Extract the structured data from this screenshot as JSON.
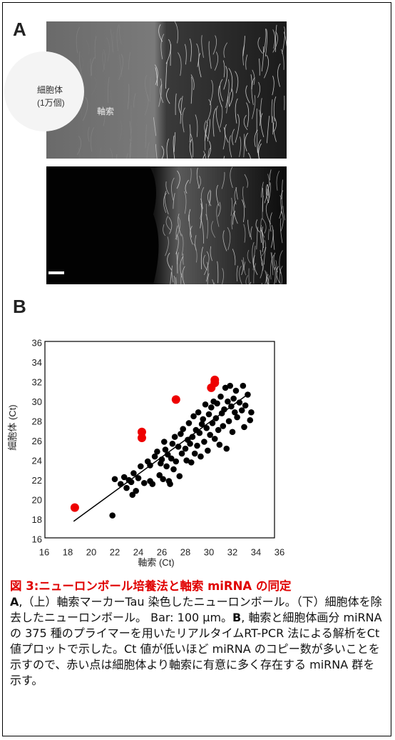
{
  "figure": {
    "panel_a_label": "A",
    "panel_b_label": "B",
    "image_labels": [
      "細胞体",
      "(1万個)",
      "軸索"
    ]
  },
  "chart_data": {
    "type": "scatter",
    "xlabel": "軸索 (Ct)",
    "ylabel": "細胞体 (Ct)",
    "xlim": [
      16,
      36
    ],
    "ylim": [
      16,
      36
    ],
    "xticks": [
      16,
      18,
      20,
      22,
      24,
      26,
      28,
      30,
      32,
      34,
      36
    ],
    "yticks": [
      16,
      18,
      20,
      22,
      24,
      26,
      28,
      30,
      32,
      34,
      36
    ],
    "series": [
      {
        "color": "#000000",
        "x": [
          21.8,
          22.5,
          22.8,
          23.0,
          23.2,
          23.4,
          23.6,
          23.8,
          24.0,
          24.2,
          24.5,
          24.8,
          25.0,
          25.0,
          25.2,
          25.4,
          25.6,
          25.8,
          25.9,
          26.0,
          26.1,
          26.2,
          26.3,
          26.4,
          26.5,
          26.6,
          26.7,
          26.8,
          26.9,
          27.0,
          27.1,
          27.2,
          27.4,
          27.5,
          27.6,
          27.7,
          27.8,
          28.0,
          28.1,
          28.2,
          28.3,
          28.4,
          28.5,
          28.6,
          28.7,
          28.8,
          28.9,
          29.0,
          29.1,
          29.2,
          29.3,
          29.4,
          29.5,
          29.6,
          29.7,
          29.8,
          29.9,
          30.0,
          30.1,
          30.2,
          30.3,
          30.4,
          30.5,
          30.6,
          30.7,
          30.8,
          30.9,
          31.0,
          31.1,
          31.2,
          31.3,
          31.4,
          31.5,
          31.6,
          31.7,
          31.8,
          31.9,
          32.0,
          32.1,
          32.2,
          32.3,
          32.4,
          32.6,
          32.8,
          32.9,
          33.0,
          33.1,
          33.3,
          33.5,
          33.6,
          22.0,
          23.5
        ],
        "values": [
          18.5,
          21.7,
          22.4,
          21.3,
          22.1,
          21.9,
          22.8,
          21.0,
          22.3,
          23.5,
          21.8,
          24.0,
          22.0,
          23.6,
          21.7,
          24.5,
          25.0,
          22.6,
          23.8,
          24.2,
          22.2,
          26.0,
          25.2,
          23.5,
          24.7,
          22.0,
          21.7,
          24.3,
          25.8,
          23.2,
          26.5,
          24.0,
          25.5,
          22.5,
          26.8,
          24.8,
          27.3,
          25.3,
          24.1,
          26.2,
          27.9,
          25.8,
          23.9,
          26.5,
          28.6,
          24.8,
          27.2,
          25.6,
          29.0,
          26.9,
          24.5,
          27.8,
          28.3,
          26.0,
          29.8,
          27.4,
          25.1,
          28.8,
          26.7,
          29.5,
          27.9,
          30.1,
          26.3,
          28.4,
          29.9,
          27.2,
          25.7,
          30.6,
          28.9,
          27.6,
          29.3,
          31.5,
          25.3,
          30.1,
          28.1,
          31.7,
          29.6,
          27.0,
          30.4,
          29.0,
          31.2,
          28.5,
          30.0,
          29.2,
          31.7,
          27.5,
          29.7,
          30.8,
          28.2,
          29.0,
          22.2,
          20.6
        ]
      },
      {
        "color": "#ee0000",
        "x": [
          18.6,
          24.3,
          24.3,
          27.2,
          30.2,
          30.5,
          30.5
        ],
        "values": [
          19.3,
          27.0,
          26.4,
          30.3,
          31.5,
          32.3,
          32.0
        ]
      }
    ],
    "trend_line": {
      "x": [
        18.5,
        33.5
      ],
      "y": [
        17.9,
        31.0
      ]
    }
  },
  "caption": {
    "title": "図 3:ニューロンボール培養法と軸索 miRNA の同定",
    "segments": [
      {
        "text": "A",
        "bold": true
      },
      {
        "text": ",（上）軸索マーカーTau 染色したニューロンボール。（下）細胞体を除去したニューロンボール。 Bar: 100 µm。",
        "bold": false
      },
      {
        "text": "B",
        "bold": true
      },
      {
        "text": ", 軸索と細胞体画分 miRNA の 375 種のプライマーを用いたリアルタイムRT-PCR 法による解析をCt値プロットで示した。Ct 値が低いほど miRNA のコピー数が多いことを示すので、赤い点は細胞体より軸索に有意に多く存在する miRNA 群を示す。",
        "bold": false
      }
    ]
  }
}
